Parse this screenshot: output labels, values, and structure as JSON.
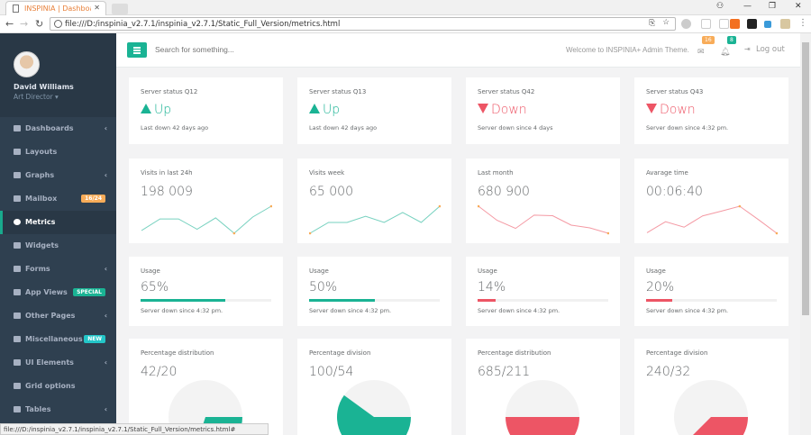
{
  "browser": {
    "tab_title": "INSPINIA | Dashboard",
    "url": "file:///D:/inspinia_v2.7.1/inspinia_v2.7.1/Static_Full_Version/metrics.html",
    "status_url": "file:///D:/inspinia_v2.7.1/inspinia_v2.7.1/Static_Full_Version/metrics.html#"
  },
  "profile": {
    "name": "David Williams",
    "role": "Art Director ▾"
  },
  "sidebar": {
    "items": [
      {
        "label": "Dashboards",
        "arrow": "‹"
      },
      {
        "label": "Layouts"
      },
      {
        "label": "Graphs",
        "arrow": "‹"
      },
      {
        "label": "Mailbox",
        "badge": "16/24",
        "badge_color": "#f8ac59"
      },
      {
        "label": "Metrics",
        "active": true
      },
      {
        "label": "Widgets"
      },
      {
        "label": "Forms",
        "arrow": "‹"
      },
      {
        "label": "App Views",
        "badge": "SPECIAL",
        "badge_color": "#1ab394"
      },
      {
        "label": "Other Pages",
        "arrow": "‹"
      },
      {
        "label": "Miscellaneous",
        "badge": "NEW",
        "badge_color": "#23c6c8"
      },
      {
        "label": "UI Elements",
        "arrow": "‹"
      },
      {
        "label": "Grid options"
      },
      {
        "label": "Tables",
        "arrow": "‹"
      }
    ]
  },
  "topnav": {
    "search_placeholder": "Search for something...",
    "welcome": "Welcome to INSPINIA+ Admin Theme.",
    "mail_count": "16",
    "alerts_count": "8",
    "logout": "Log out"
  },
  "colors": {
    "primary": "#1ab394",
    "danger": "#ed5565",
    "warning": "#f8ac59"
  },
  "status_cards": [
    {
      "title": "Server status Q12",
      "state": "Up",
      "direction": "up",
      "note": "Last down 42 days ago"
    },
    {
      "title": "Server status Q13",
      "state": "Up",
      "direction": "up",
      "note": "Last down 42 days ago"
    },
    {
      "title": "Server status Q42",
      "state": "Down",
      "direction": "down",
      "note": "Server down since 4 days"
    },
    {
      "title": "Server status Q43",
      "state": "Down",
      "direction": "down",
      "note": "Server down since 4:32 pm."
    }
  ],
  "line_cards": [
    {
      "title": "Visits in last 24h",
      "value": "198 009",
      "color": "#1ab394",
      "points": [
        2,
        6.3,
        6.3,
        2.5,
        6.7,
        1,
        7,
        11
      ]
    },
    {
      "title": "Visits week",
      "value": "65 000",
      "color": "#1ab394",
      "points": [
        1,
        5,
        5,
        7.3,
        5,
        8.7,
        5,
        11
      ]
    },
    {
      "title": "Last month",
      "value": "680 900",
      "color": "#ed5565",
      "points": [
        11,
        5.8,
        2.8,
        7.7,
        7.5,
        4,
        3,
        1
      ]
    },
    {
      "title": "Avarage time",
      "value": "00:06:40",
      "color": "#ed5565",
      "points": [
        1.2,
        5.2,
        3.2,
        7.3,
        9,
        10.8,
        6,
        1
      ]
    }
  ],
  "usage_cards": [
    {
      "title": "Usage",
      "value": "65%",
      "percent": 65,
      "color": "#1ab394",
      "note": "Server down since 4:32 pm."
    },
    {
      "title": "Usage",
      "value": "50%",
      "percent": 50,
      "color": "#1ab394",
      "note": "Server down since 4:32 pm."
    },
    {
      "title": "Usage",
      "value": "14%",
      "percent": 14,
      "color": "#ed5565",
      "note": "Server down since 4:32 pm."
    },
    {
      "title": "Usage",
      "value": "20%",
      "percent": 20,
      "color": "#ed5565",
      "note": "Server down since 4:32 pm."
    }
  ],
  "pie_cards": [
    {
      "title": "Percentage distribution",
      "value": "42/20",
      "fill": 0.3,
      "color": "#1ab394"
    },
    {
      "title": "Percentage division",
      "value": "100/54",
      "fill": 0.6,
      "color": "#1ab394"
    },
    {
      "title": "Percentage distribution",
      "value": "685/211",
      "fill": 0.5,
      "color": "#ed5565"
    },
    {
      "title": "Percentage division",
      "value": "240/32",
      "fill": 0.375,
      "color": "#ed5565"
    }
  ]
}
